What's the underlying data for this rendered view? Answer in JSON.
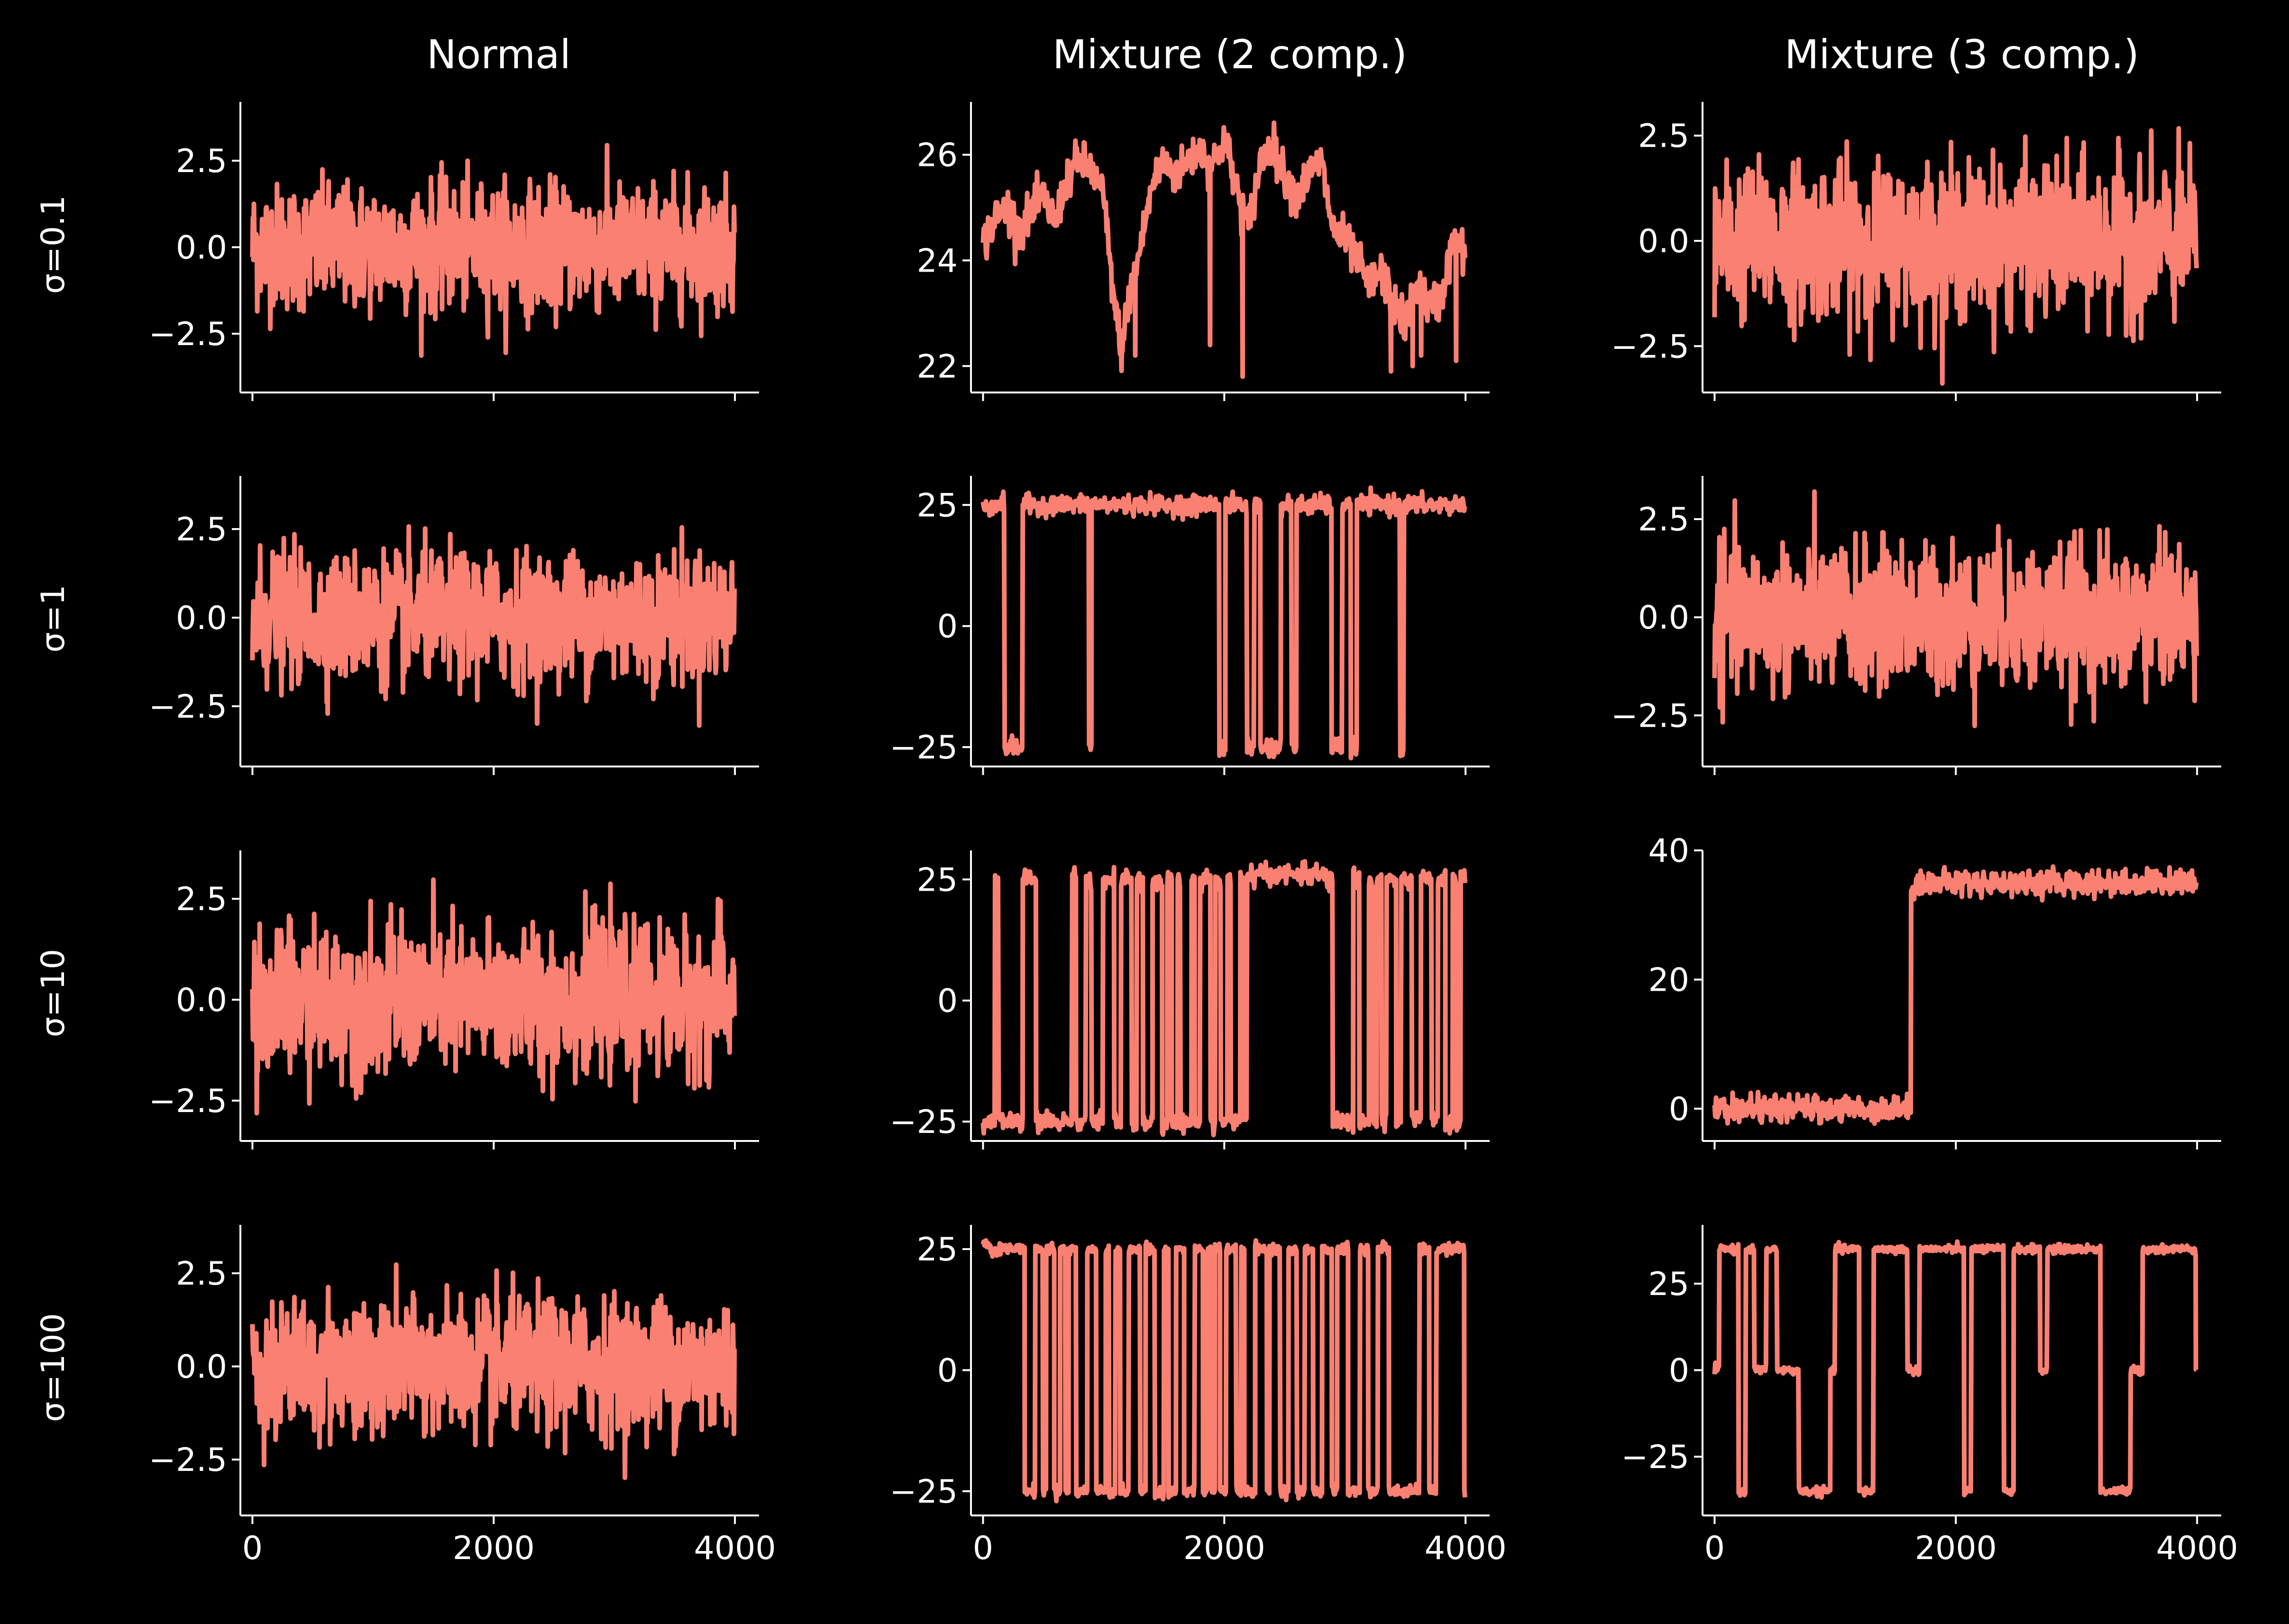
{
  "figure": {
    "background": "#000000",
    "line_color": "#fa8072",
    "axis_color": "#ffffff",
    "column_titles": [
      "Normal",
      "Mixture (2 comp.)",
      "Mixture (3 comp.)"
    ],
    "row_labels": [
      "σ=0.1",
      "σ=1",
      "σ=10",
      "σ=100"
    ]
  },
  "chart_data": [
    {
      "type": "line",
      "row": 0,
      "col": 0,
      "xlim": [
        -100,
        4200
      ],
      "ylim": [
        -4.2,
        4.2
      ],
      "xticks": [
        0,
        2000,
        4000
      ],
      "xticklabels": [
        "0",
        "2000",
        "4000"
      ],
      "xticklabels_visible": false,
      "yticks": [
        -2.5,
        0,
        2.5
      ],
      "yticklabels": [
        "−2.5",
        "0.0",
        "2.5"
      ],
      "series": [
        {
          "kind": "noise",
          "samples": 4000,
          "mean": 0,
          "std": 1.0,
          "max": 3.7,
          "min": -4.1,
          "values": []
        }
      ]
    },
    {
      "type": "line",
      "row": 0,
      "col": 1,
      "xlim": [
        -100,
        4200
      ],
      "ylim": [
        21.5,
        27.0
      ],
      "xticks": [
        0,
        2000,
        4000
      ],
      "xticklabels": [
        "0",
        "2000",
        "4000"
      ],
      "xticklabels_visible": false,
      "yticks": [
        22,
        24,
        26
      ],
      "yticklabels": [
        "22",
        "24",
        "26"
      ],
      "series": [
        {
          "kind": "path",
          "values": [
            [
              0,
              24.3
            ],
            [
              100,
              24.8
            ],
            [
              200,
              25.0
            ],
            [
              300,
              24.6
            ],
            [
              400,
              24.9
            ],
            [
              500,
              25.2
            ],
            [
              600,
              24.7
            ],
            [
              700,
              25.6
            ],
            [
              800,
              25.9
            ],
            [
              900,
              25.7
            ],
            [
              1000,
              25.2
            ],
            [
              1050,
              24.0
            ],
            [
              1100,
              23.0
            ],
            [
              1150,
              22.3
            ],
            [
              1200,
              23.2
            ],
            [
              1300,
              24.2
            ],
            [
              1400,
              25.4
            ],
            [
              1500,
              25.9
            ],
            [
              1600,
              25.6
            ],
            [
              1700,
              25.9
            ],
            [
              1800,
              26.1
            ],
            [
              1900,
              25.8
            ],
            [
              2000,
              26.3
            ],
            [
              2100,
              25.4
            ],
            [
              2200,
              24.6
            ],
            [
              2300,
              25.9
            ],
            [
              2400,
              26.2
            ],
            [
              2500,
              25.6
            ],
            [
              2600,
              25.2
            ],
            [
              2700,
              25.6
            ],
            [
              2800,
              25.9
            ],
            [
              2900,
              24.6
            ],
            [
              3000,
              24.4
            ],
            [
              3100,
              24.0
            ],
            [
              3200,
              23.5
            ],
            [
              3300,
              23.8
            ],
            [
              3400,
              23.2
            ],
            [
              3500,
              22.8
            ],
            [
              3600,
              23.6
            ],
            [
              3700,
              23.1
            ],
            [
              3800,
              23.3
            ],
            [
              3900,
              24.4
            ],
            [
              4000,
              24.1
            ]
          ],
          "spikes": [
            [
              1260,
              22.2
            ],
            [
              1880,
              22.4
            ],
            [
              2150,
              21.8
            ],
            [
              3380,
              21.9
            ],
            [
              3560,
              22.0
            ],
            [
              3630,
              22.2
            ],
            [
              3920,
              22.1
            ]
          ]
        }
      ]
    },
    {
      "type": "line",
      "row": 0,
      "col": 2,
      "xlim": [
        -100,
        4200
      ],
      "ylim": [
        -3.6,
        3.3
      ],
      "xticks": [
        0,
        2000,
        4000
      ],
      "xticklabels": [
        "0",
        "2000",
        "4000"
      ],
      "xticklabels_visible": false,
      "yticks": [
        -2.5,
        0,
        2.5
      ],
      "yticklabels": [
        "−2.5",
        "0.0",
        "2.5"
      ],
      "series": [
        {
          "kind": "noise",
          "samples": 4000,
          "mean": 0,
          "std": 1.0,
          "max": 2.9,
          "min": -3.4,
          "values": []
        }
      ]
    },
    {
      "type": "line",
      "row": 1,
      "col": 0,
      "xlim": [
        -100,
        4200
      ],
      "ylim": [
        -4.2,
        4.0
      ],
      "xticks": [
        0,
        2000,
        4000
      ],
      "xticklabels": [
        "0",
        "2000",
        "4000"
      ],
      "xticklabels_visible": false,
      "yticks": [
        -2.5,
        0,
        2.5
      ],
      "yticklabels": [
        "−2.5",
        "0.0",
        "2.5"
      ],
      "series": [
        {
          "kind": "noise",
          "samples": 4000,
          "mean": 0,
          "std": 1.0,
          "max": 3.5,
          "min": -4.2,
          "values": []
        }
      ]
    },
    {
      "type": "line",
      "row": 1,
      "col": 1,
      "xlim": [
        -100,
        4200
      ],
      "ylim": [
        -29,
        31
      ],
      "xticks": [
        0,
        2000,
        4000
      ],
      "xticklabels": [
        "0",
        "2000",
        "4000"
      ],
      "xticklabels_visible": false,
      "yticks": [
        -25,
        0,
        25
      ],
      "yticklabels": [
        "−25",
        "0",
        "25"
      ],
      "series": [
        {
          "kind": "regime",
          "samples": 4000,
          "noise": 1.0,
          "levels": [
            25,
            -25
          ],
          "segments": [
            [
              0,
              180,
              25
            ],
            [
              180,
              330,
              -25
            ],
            [
              330,
              880,
              25
            ],
            [
              880,
              900,
              -25
            ],
            [
              900,
              1960,
              25
            ],
            [
              1960,
              2010,
              -25
            ],
            [
              2010,
              2190,
              25
            ],
            [
              2190,
              2250,
              -25
            ],
            [
              2250,
              2300,
              25
            ],
            [
              2300,
              2470,
              -25
            ],
            [
              2470,
              2560,
              25
            ],
            [
              2560,
              2600,
              -25
            ],
            [
              2600,
              2890,
              25
            ],
            [
              2890,
              2980,
              -25
            ],
            [
              2980,
              3050,
              25
            ],
            [
              3050,
              3100,
              -25
            ],
            [
              3100,
              3460,
              25
            ],
            [
              3460,
              3490,
              -25
            ],
            [
              3490,
              4000,
              25
            ]
          ]
        }
      ]
    },
    {
      "type": "line",
      "row": 1,
      "col": 2,
      "xlim": [
        -100,
        4200
      ],
      "ylim": [
        -3.8,
        3.6
      ],
      "xticks": [
        0,
        2000,
        4000
      ],
      "xticklabels": [
        "0",
        "2000",
        "4000"
      ],
      "xticklabels_visible": false,
      "yticks": [
        -2.5,
        0,
        2.5
      ],
      "yticklabels": [
        "−2.5",
        "0.0",
        "2.5"
      ],
      "series": [
        {
          "kind": "noise",
          "samples": 4000,
          "mean": 0,
          "std": 1.0,
          "max": 3.2,
          "min": -3.5,
          "values": []
        }
      ]
    },
    {
      "type": "line",
      "row": 2,
      "col": 0,
      "xlim": [
        -100,
        4200
      ],
      "ylim": [
        -3.5,
        3.7
      ],
      "xticks": [
        0,
        2000,
        4000
      ],
      "xticklabels": [
        "0",
        "2000",
        "4000"
      ],
      "xticklabels_visible": false,
      "yticks": [
        -2.5,
        0,
        2.5
      ],
      "yticklabels": [
        "−2.5",
        "0.0",
        "2.5"
      ],
      "series": [
        {
          "kind": "noise",
          "samples": 4000,
          "mean": 0,
          "std": 1.0,
          "max": 3.4,
          "min": -3.3,
          "values": []
        }
      ]
    },
    {
      "type": "line",
      "row": 2,
      "col": 1,
      "xlim": [
        -100,
        4200
      ],
      "ylim": [
        -29,
        31
      ],
      "xticks": [
        0,
        2000,
        4000
      ],
      "xticklabels": [
        "0",
        "2000",
        "4000"
      ],
      "xticklabels_visible": false,
      "yticks": [
        -25,
        0,
        25
      ],
      "yticklabels": [
        "−25",
        "0",
        "25"
      ],
      "series": [
        {
          "kind": "regime",
          "samples": 4000,
          "noise": 1.0,
          "levels": [
            25,
            -25
          ],
          "segments": [
            [
              0,
              100,
              -25
            ],
            [
              100,
              130,
              25
            ],
            [
              130,
              330,
              -25
            ],
            [
              330,
              440,
              25
            ],
            [
              440,
              740,
              -25
            ],
            [
              740,
              2160,
              "switch"
            ],
            [
              2160,
              2190,
              -25
            ],
            [
              2190,
              2200,
              25
            ],
            [
              2200,
              2830,
              26
            ],
            [
              2830,
              2900,
              25
            ],
            [
              2900,
              3070,
              -25
            ],
            [
              3070,
              3960,
              "switch"
            ],
            [
              3960,
              4000,
              25
            ]
          ]
        }
      ]
    },
    {
      "type": "line",
      "row": 2,
      "col": 2,
      "xlim": [
        -100,
        4200
      ],
      "ylim": [
        -5,
        40
      ],
      "xticks": [
        0,
        2000,
        4000
      ],
      "xticklabels": [
        "0",
        "2000",
        "4000"
      ],
      "xticklabels_visible": false,
      "yticks": [
        0,
        20,
        40
      ],
      "yticklabels": [
        "0",
        "20",
        "40"
      ],
      "series": [
        {
          "kind": "regime",
          "samples": 4000,
          "noise": 1.0,
          "levels": [
            0,
            35
          ],
          "segments": [
            [
              0,
              1630,
              0
            ],
            [
              1630,
              4000,
              35
            ]
          ]
        }
      ]
    },
    {
      "type": "line",
      "row": 3,
      "col": 0,
      "xlim": [
        -100,
        4200
      ],
      "ylim": [
        -4.0,
        3.8
      ],
      "xticks": [
        0,
        2000,
        4000
      ],
      "xticklabels": [
        "0",
        "2000",
        "4000"
      ],
      "xticklabels_visible": true,
      "yticks": [
        -2.5,
        0,
        2.5
      ],
      "yticklabels": [
        "−2.5",
        "0.0",
        "2.5"
      ],
      "series": [
        {
          "kind": "noise",
          "samples": 4000,
          "mean": 0,
          "std": 1.0,
          "max": 3.4,
          "min": -3.7,
          "values": []
        }
      ]
    },
    {
      "type": "line",
      "row": 3,
      "col": 1,
      "xlim": [
        -100,
        4200
      ],
      "ylim": [
        -30,
        30
      ],
      "xticks": [
        0,
        2000,
        4000
      ],
      "xticklabels": [
        "0",
        "2000",
        "4000"
      ],
      "xticklabels_visible": true,
      "yticks": [
        -25,
        0,
        25
      ],
      "yticklabels": [
        "−25",
        "0",
        "25"
      ],
      "series": [
        {
          "kind": "regime",
          "samples": 4000,
          "noise": 0.6,
          "levels": [
            25,
            -25
          ],
          "segments": [
            [
              0,
              60,
              26
            ],
            [
              60,
              290,
              25
            ],
            [
              290,
              3440,
              "switch"
            ],
            [
              3440,
              3620,
              -25
            ],
            [
              3620,
              3700,
              25
            ],
            [
              3700,
              3760,
              -25
            ],
            [
              3760,
              3990,
              25
            ],
            [
              3990,
              4000,
              -25
            ]
          ]
        }
      ]
    },
    {
      "type": "line",
      "row": 3,
      "col": 2,
      "xlim": [
        -100,
        4200
      ],
      "ylim": [
        -42,
        42
      ],
      "xticks": [
        0,
        2000,
        4000
      ],
      "xticklabels": [
        "0",
        "2000",
        "4000"
      ],
      "xticklabels_visible": true,
      "yticks": [
        -25,
        0,
        25
      ],
      "yticklabels": [
        "−25",
        "0",
        "25"
      ],
      "series": [
        {
          "kind": "regime",
          "samples": 4000,
          "noise": 0.6,
          "levels": [
            0,
            35,
            -35
          ],
          "segments": [
            [
              0,
              40,
              0
            ],
            [
              40,
              200,
              35
            ],
            [
              200,
              260,
              -35
            ],
            [
              260,
              330,
              35
            ],
            [
              330,
              430,
              0
            ],
            [
              430,
              520,
              35
            ],
            [
              520,
              700,
              0
            ],
            [
              700,
              960,
              -35
            ],
            [
              960,
              1000,
              0
            ],
            [
              1000,
              1200,
              35
            ],
            [
              1200,
              1320,
              -35
            ],
            [
              1320,
              1600,
              35
            ],
            [
              1600,
              1700,
              0
            ],
            [
              1700,
              2070,
              35
            ],
            [
              2070,
              2130,
              -35
            ],
            [
              2130,
              2400,
              35
            ],
            [
              2400,
              2480,
              -35
            ],
            [
              2480,
              2700,
              35
            ],
            [
              2700,
              2760,
              0
            ],
            [
              2760,
              3200,
              35
            ],
            [
              3200,
              3450,
              -35
            ],
            [
              3450,
              3550,
              0
            ],
            [
              3550,
              3990,
              35
            ],
            [
              3990,
              4000,
              0
            ]
          ]
        }
      ]
    }
  ]
}
